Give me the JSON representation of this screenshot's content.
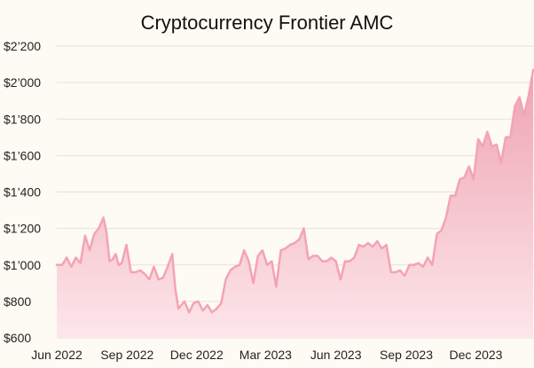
{
  "chart_data": {
    "type": "area",
    "title": "Cryptocurrency Frontier AMC",
    "xlabel": "",
    "ylabel": "",
    "ylim": [
      600,
      2200
    ],
    "xlim": [
      "2022-06-01",
      "2024-02-15"
    ],
    "grid": "horizontal",
    "y_ticks": [
      600,
      800,
      1000,
      1200,
      1400,
      1600,
      1800,
      2000,
      2200
    ],
    "y_tick_labels": [
      "$600",
      "$800",
      "$1’000",
      "$1’200",
      "$1’400",
      "$1’600",
      "$1’800",
      "$2’000",
      "$2’200"
    ],
    "x_ticks": [
      "2022-06-01",
      "2022-09-01",
      "2022-12-01",
      "2023-03-01",
      "2023-06-01",
      "2023-09-01",
      "2023-12-01"
    ],
    "x_tick_labels": [
      "Jun 2022",
      "Sep 2022",
      "Dec 2022",
      "Mar 2023",
      "Jun 2023",
      "Sep 2023",
      "Dec 2023"
    ],
    "colors": {
      "line": "#f4a3b4",
      "fill_top": "#eea3b2",
      "fill_bottom": "#fde6ea"
    },
    "series": [
      {
        "x": [
          "2022-06-01",
          "2022-06-08",
          "2022-06-14",
          "2022-06-20",
          "2022-06-26",
          "2022-07-02",
          "2022-07-08",
          "2022-07-14",
          "2022-07-20",
          "2022-07-26",
          "2022-08-01",
          "2022-08-05",
          "2022-08-09",
          "2022-08-13",
          "2022-08-17",
          "2022-08-21",
          "2022-08-25",
          "2022-08-31",
          "2022-09-06",
          "2022-09-12",
          "2022-09-18",
          "2022-09-24",
          "2022-09-30",
          "2022-10-06",
          "2022-10-12",
          "2022-10-18",
          "2022-10-24",
          "2022-10-30",
          "2022-11-03",
          "2022-11-07",
          "2022-11-11",
          "2022-11-15",
          "2022-11-21",
          "2022-11-27",
          "2022-12-03",
          "2022-12-09",
          "2022-12-15",
          "2022-12-21",
          "2022-12-27",
          "2023-01-02",
          "2023-01-08",
          "2023-01-14",
          "2023-01-20",
          "2023-01-26",
          "2023-02-01",
          "2023-02-07",
          "2023-02-13",
          "2023-02-19",
          "2023-02-25",
          "2023-03-03",
          "2023-03-09",
          "2023-03-15",
          "2023-03-21",
          "2023-03-27",
          "2023-04-02",
          "2023-04-08",
          "2023-04-14",
          "2023-04-20",
          "2023-04-26",
          "2023-05-02",
          "2023-05-08",
          "2023-05-14",
          "2023-05-20",
          "2023-05-26",
          "2023-06-01",
          "2023-06-07",
          "2023-06-13",
          "2023-06-19",
          "2023-06-25",
          "2023-07-01",
          "2023-07-07",
          "2023-07-13",
          "2023-07-19",
          "2023-07-25",
          "2023-07-31",
          "2023-08-06",
          "2023-08-12",
          "2023-08-18",
          "2023-08-24",
          "2023-08-30",
          "2023-09-05",
          "2023-09-11",
          "2023-09-17",
          "2023-09-23",
          "2023-09-29",
          "2023-10-05",
          "2023-10-11",
          "2023-10-17",
          "2023-10-23",
          "2023-10-29",
          "2023-11-04",
          "2023-11-10",
          "2023-11-16",
          "2023-11-22",
          "2023-11-28",
          "2023-12-04",
          "2023-12-10",
          "2023-12-16",
          "2023-12-22",
          "2023-12-28",
          "2024-01-03",
          "2024-01-09",
          "2024-01-15",
          "2024-01-21",
          "2024-01-27",
          "2024-02-02",
          "2024-02-08",
          "2024-02-14"
        ],
        "y": [
          1000,
          1000,
          1040,
          990,
          1040,
          1010,
          1160,
          1080,
          1170,
          1200,
          1260,
          1180,
          1020,
          1030,
          1060,
          1000,
          1010,
          1110,
          960,
          960,
          970,
          950,
          920,
          990,
          920,
          930,
          990,
          1060,
          870,
          760,
          780,
          800,
          740,
          790,
          800,
          750,
          780,
          740,
          760,
          790,
          920,
          970,
          990,
          1000,
          1080,
          1020,
          900,
          1050,
          1080,
          1000,
          1020,
          880,
          1080,
          1090,
          1110,
          1120,
          1140,
          1200,
          1030,
          1050,
          1050,
          1020,
          1020,
          1040,
          1020,
          920,
          1020,
          1020,
          1040,
          1110,
          1100,
          1120,
          1100,
          1130,
          1090,
          1110,
          960,
          960,
          970,
          940,
          1000,
          1000,
          1010,
          990,
          1040,
          1000,
          1170,
          1190,
          1260,
          1380,
          1380,
          1470,
          1480,
          1540,
          1470,
          1690,
          1650,
          1730,
          1650,
          1660,
          1560,
          1700,
          1700,
          1870,
          1920,
          1820,
          1930,
          2070
        ]
      }
    ]
  }
}
